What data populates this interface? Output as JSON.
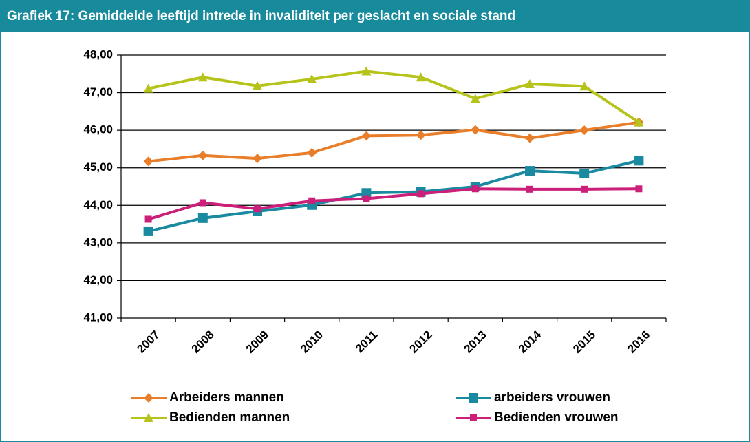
{
  "chart_data": {
    "type": "line",
    "title": "Grafiek 17: Gemiddelde leeftijd intrede in invaliditeit per geslacht en sociale stand",
    "categories": [
      "2007",
      "2008",
      "2009",
      "2010",
      "2011",
      "2012",
      "2013",
      "2014",
      "2015",
      "2016"
    ],
    "series": [
      {
        "name": "Arbeiders mannen",
        "color": "#e87d2a",
        "marker": "diamond",
        "values": [
          45.17,
          45.33,
          45.25,
          45.4,
          45.85,
          45.87,
          46.01,
          45.79,
          46.0,
          46.21
        ]
      },
      {
        "name": "arbeiders vrouwen",
        "color": "#1a8aa0",
        "marker": "square",
        "values": [
          43.31,
          43.66,
          43.84,
          44.01,
          44.33,
          44.36,
          44.5,
          44.92,
          44.85,
          45.19
        ]
      },
      {
        "name": "Bedienden mannen",
        "color": "#b5c31a",
        "marker": "triangle",
        "values": [
          47.11,
          47.41,
          47.18,
          47.36,
          47.57,
          47.41,
          46.84,
          47.23,
          47.17,
          46.21
        ]
      },
      {
        "name": "Bedienden vrouwen",
        "color": "#cc1f7a",
        "marker": "small-square",
        "values": [
          43.63,
          44.07,
          43.91,
          44.12,
          44.18,
          44.31,
          44.44,
          44.43,
          44.43,
          44.44
        ]
      }
    ],
    "ylim": [
      41,
      48
    ],
    "yticks": [
      {
        "value": 41,
        "label": "41,00"
      },
      {
        "value": 42,
        "label": "42,00"
      },
      {
        "value": 43,
        "label": "43,00"
      },
      {
        "value": 44,
        "label": "44,00"
      },
      {
        "value": 45,
        "label": "45,00"
      },
      {
        "value": 46,
        "label": "46,00"
      },
      {
        "value": 47,
        "label": "47,00"
      },
      {
        "value": 48,
        "label": "48,00"
      }
    ],
    "grid": true,
    "legend": "bottom"
  }
}
